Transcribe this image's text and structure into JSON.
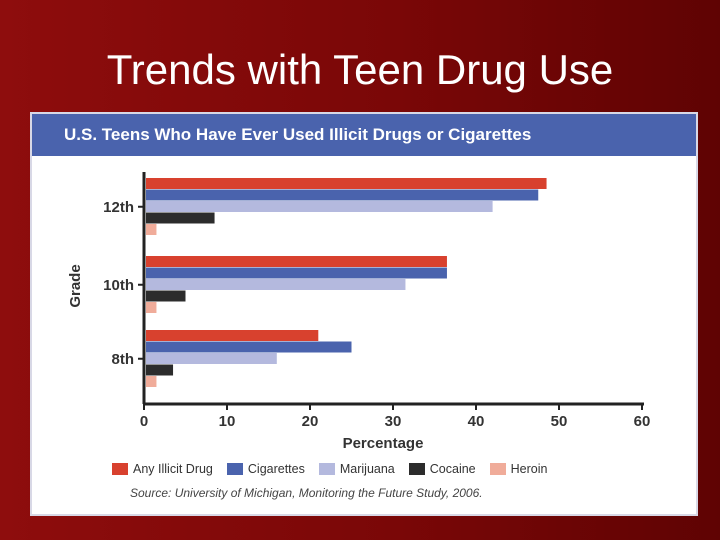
{
  "slide": {
    "title": "Trends with Teen Drug Use"
  },
  "figure": {
    "header": "U.S. Teens Who Have Ever Used Illicit Drugs or Cigarettes",
    "source": "Source: University of Michigan, Monitoring the Future Study, 2006."
  },
  "chart_data": {
    "type": "bar",
    "orientation": "horizontal",
    "categories": [
      "12th",
      "10th",
      "8th"
    ],
    "series": [
      {
        "name": "Any Illicit Drug",
        "color": "#d8412e",
        "values": [
          48.5,
          36.5,
          21.0
        ]
      },
      {
        "name": "Cigarettes",
        "color": "#4a63ad",
        "values": [
          47.5,
          36.5,
          25.0
        ]
      },
      {
        "name": "Marijuana",
        "color": "#b4b9de",
        "values": [
          42.0,
          31.5,
          16.0
        ]
      },
      {
        "name": "Cocaine",
        "color": "#2c2c2c",
        "values": [
          8.5,
          5.0,
          3.5
        ]
      },
      {
        "name": "Heroin",
        "color": "#f0ac9a",
        "values": [
          1.5,
          1.5,
          1.5
        ]
      }
    ],
    "xlabel": "Percentage",
    "ylabel": "Grade",
    "xlim": [
      0,
      60
    ],
    "xticks": [
      0,
      10,
      20,
      30,
      40,
      50,
      60
    ],
    "legend": "bottom",
    "grid": false
  }
}
